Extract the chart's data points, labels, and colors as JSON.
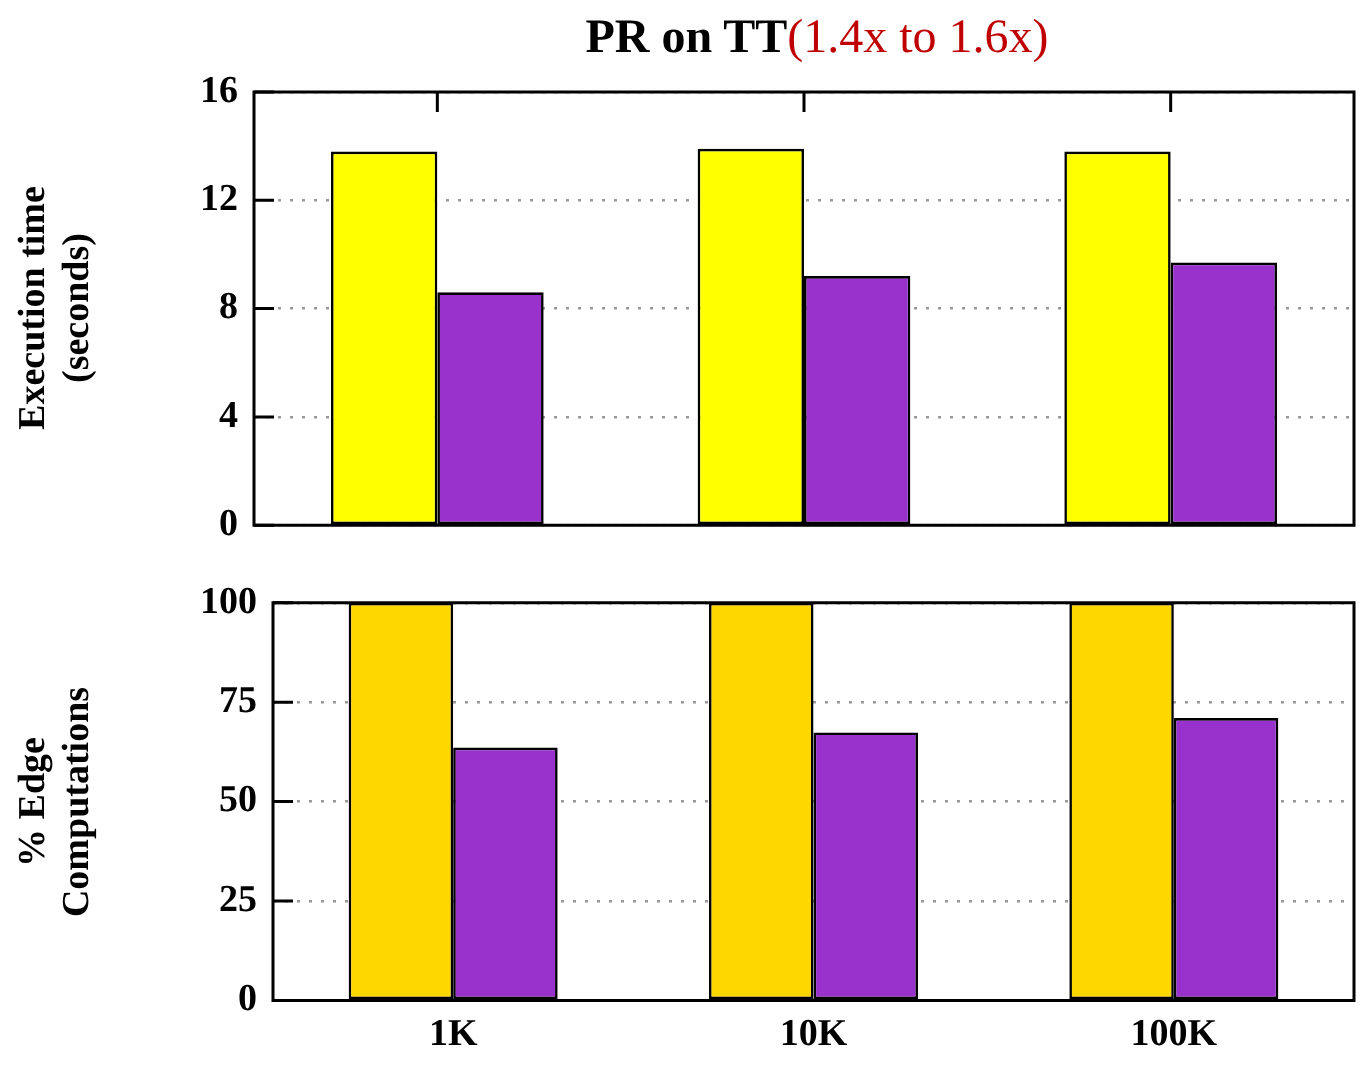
{
  "chart_data": [
    {
      "type": "bar",
      "title": "PR on TT",
      "subtitle": "(1.4x to 1.6x)",
      "ylabel": "Execution time (seconds)",
      "categories": [
        null,
        null,
        null
      ],
      "series": [
        {
          "color": "#ffff00",
          "values": [
            13.8,
            13.9,
            13.8
          ]
        },
        {
          "color": "#9932cc",
          "values": [
            8.6,
            9.2,
            9.7
          ]
        }
      ],
      "ylim": [
        0,
        16
      ],
      "yticks": [
        0,
        4,
        8,
        12,
        16
      ],
      "grid": "y",
      "tick_labels": "y"
    },
    {
      "type": "bar",
      "ylabel": "% Edge Computations",
      "categories": [
        "1K",
        "10K",
        "100K"
      ],
      "series": [
        {
          "color": "#ffd700",
          "values": [
            100,
            100,
            100
          ]
        },
        {
          "color": "#9932cc",
          "values": [
            63.6,
            67.4,
            71.0
          ]
        }
      ],
      "ylim": [
        0,
        100
      ],
      "yticks": [
        0,
        25,
        50,
        75,
        100
      ],
      "grid": "y"
    }
  ]
}
